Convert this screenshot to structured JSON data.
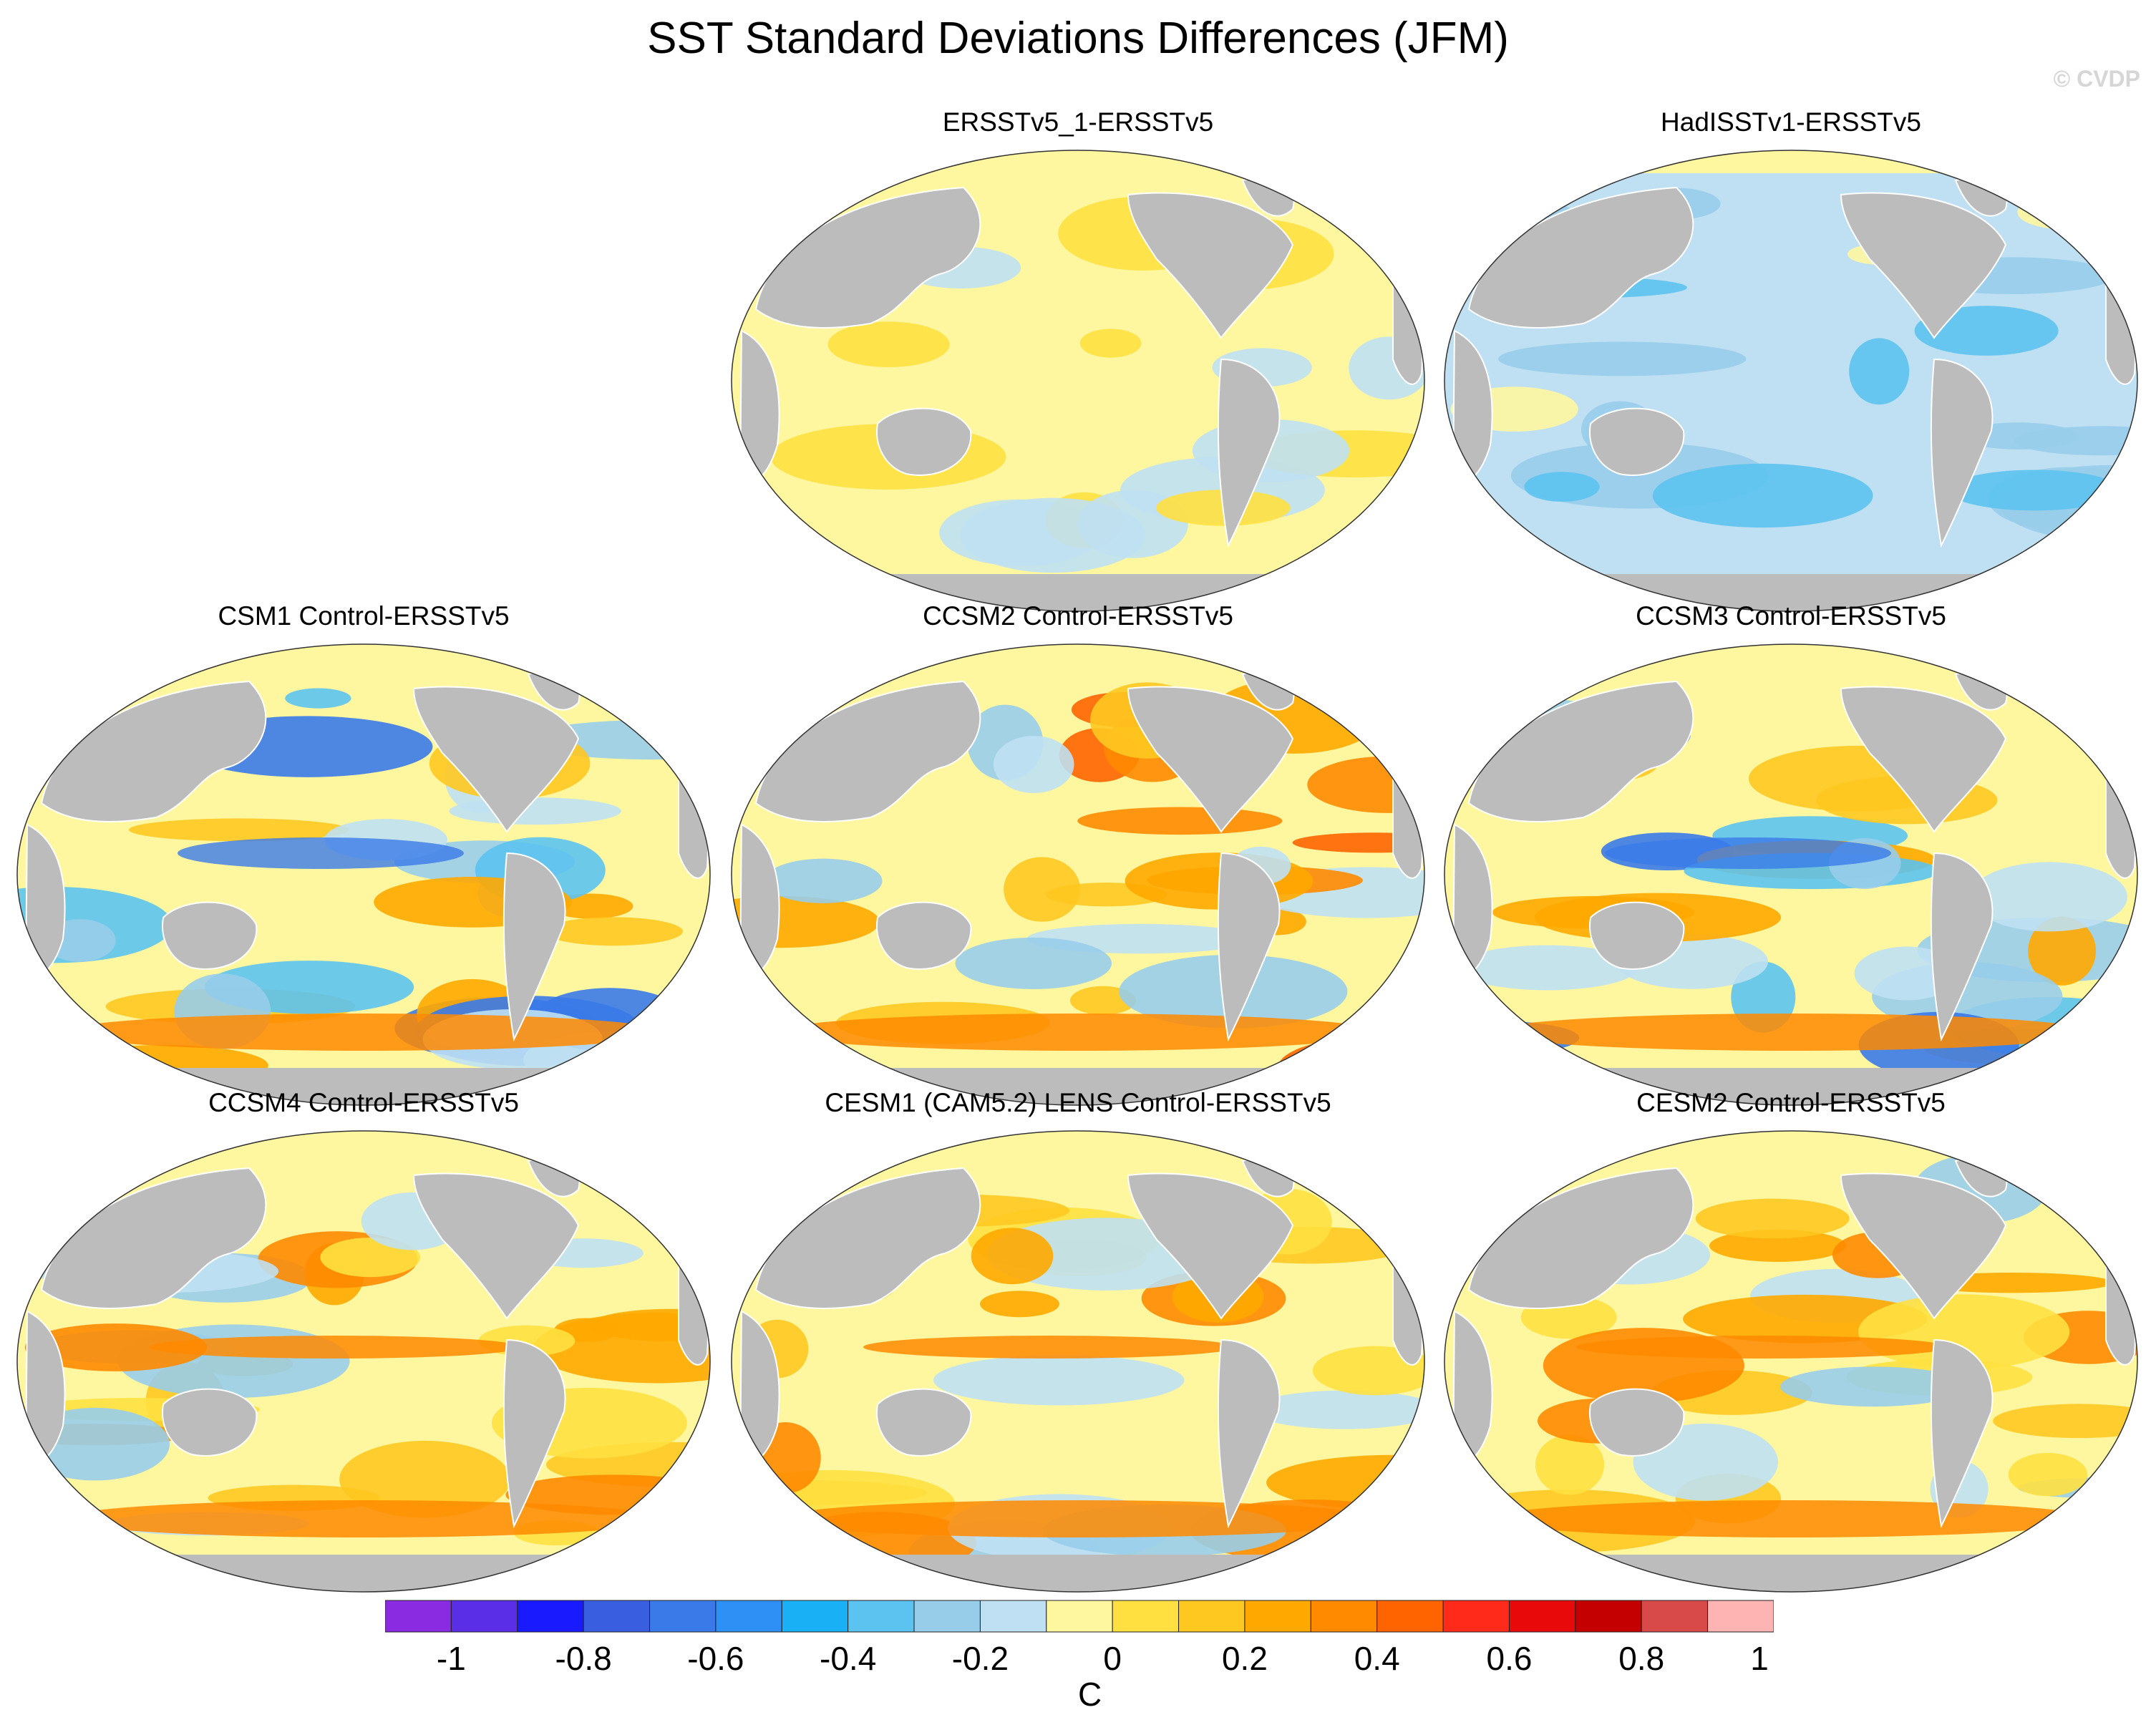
{
  "figure": {
    "title": "SST Standard Deviations Differences (JFM)",
    "watermark": "© CVDP"
  },
  "panels": [
    {
      "title": "ERSSTv5_1-ERSSTv5",
      "pattern": "near_zero"
    },
    {
      "title": "HadISSTv1-ERSSTv5",
      "pattern": "cool"
    },
    {
      "title": "CSM1 Control-ERSSTv5",
      "pattern": "mixed_cool_tropics"
    },
    {
      "title": "CCSM2 Control-ERSSTv5",
      "pattern": "warm_south"
    },
    {
      "title": "CCSM3 Control-ERSSTv5",
      "pattern": "mixed_cool_tropics"
    },
    {
      "title": "CCSM4 Control-ERSSTv5",
      "pattern": "warm_equator"
    },
    {
      "title": "CESM1 (CAM5.2) LENS Control-ERSSTv5",
      "pattern": "warm_equator"
    },
    {
      "title": "CESM2 Control-ERSSTv5",
      "pattern": "warm_equator"
    }
  ],
  "colorbar": {
    "unit": "C",
    "tick_labels": [
      "-1",
      "-0.8",
      "-0.6",
      "-0.4",
      "-0.2",
      "0",
      "0.2",
      "0.4",
      "0.6",
      "0.8",
      "1"
    ],
    "colors": [
      "#8a2be2",
      "#5a2ee6",
      "#1a1aff",
      "#3a5ee0",
      "#3a7ae8",
      "#2e8ff5",
      "#1ab0f5",
      "#5cc3f0",
      "#98cdea",
      "#bfe0f2",
      "#fff7a0",
      "#ffe040",
      "#ffc820",
      "#ffa800",
      "#ff8a00",
      "#ff6400",
      "#ff2a1a",
      "#e80a0a",
      "#c40000",
      "#d84a4a",
      "#ffb4b4"
    ]
  },
  "colors": {
    "land": "#bcbcbc",
    "coast": "#ffffff"
  }
}
